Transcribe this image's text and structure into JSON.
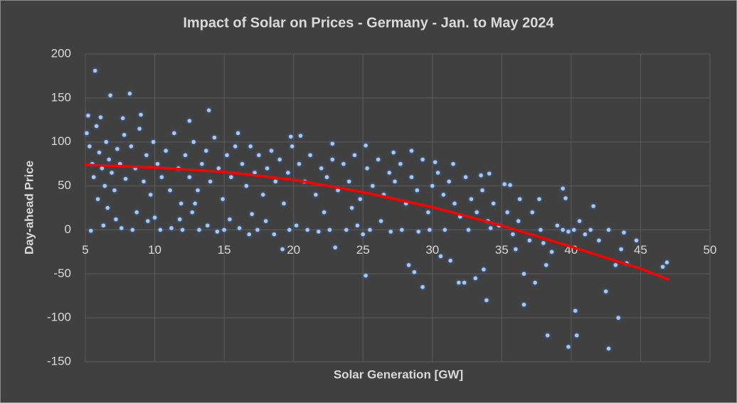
{
  "chart_data": {
    "type": "scatter",
    "title": "Impact of Solar on Prices - Germany - Jan. to May 2024",
    "x_label": "Solar Generation [GW]",
    "y_label": "Day-ahead Price",
    "xlim": [
      5,
      50
    ],
    "ylim": [
      -150,
      200
    ],
    "xticks": [
      5,
      10,
      15,
      20,
      25,
      30,
      35,
      40,
      45,
      50
    ],
    "yticks": [
      -150,
      -100,
      -50,
      0,
      50,
      100,
      150,
      200
    ],
    "grid": true,
    "series": [
      {
        "type": "scatter",
        "color": "#a7c7f2",
        "x": [
          5.7,
          6.8,
          8.2,
          13.9,
          25.2,
          29.3,
          33.9,
          36.6,
          38.3,
          39.8,
          40.3,
          40.4,
          42.5,
          42.7,
          43.4,
          46.6,
          46.9,
          44.7,
          43.8,
          42.7,
          41.6,
          39.4,
          39.6,
          37.7,
          36.3,
          35.2,
          35.6,
          33.5,
          34.1,
          30.2,
          31.5,
          28.5,
          27.2,
          25.2,
          22.8,
          19.8,
          20.5,
          16.0,
          12.5,
          9.0,
          5.2,
          6.1,
          7.7,
          5.1,
          5.3,
          5.5,
          5.6,
          5.8,
          6.0,
          6.2,
          6.4,
          6.5,
          6.7,
          6.9,
          7.1,
          7.3,
          7.5,
          7.8,
          7.9,
          5.4,
          6.3,
          7.2,
          7.6,
          8.4,
          5.9,
          6.6,
          8.3,
          8.6,
          8.9,
          9.2,
          9.4,
          9.7,
          9.9,
          10.2,
          10.5,
          10.8,
          11.1,
          11.4,
          11.7,
          11.9,
          8.7,
          9.5,
          10.0,
          10.4,
          11.2,
          11.8,
          12.0,
          12.2,
          12.5,
          12.8,
          13.1,
          13.4,
          13.7,
          14.0,
          14.3,
          14.6,
          14.9,
          15.2,
          15.5,
          15.8,
          12.7,
          13.2,
          13.8,
          14.5,
          15.0,
          15.4,
          16.1,
          12.9,
          16.3,
          16.6,
          16.9,
          17.2,
          17.5,
          17.8,
          18.1,
          18.4,
          18.7,
          19.0,
          19.3,
          19.6,
          19.9,
          16.8,
          17.4,
          18.0,
          18.6,
          19.2,
          19.7,
          20.2,
          17.0,
          20.4,
          20.8,
          21.2,
          21.6,
          22.0,
          22.4,
          22.8,
          23.2,
          23.6,
          24.0,
          24.4,
          24.8,
          21.0,
          21.8,
          22.6,
          23.0,
          23.8,
          24.6,
          25.0,
          22.2,
          24.2,
          25.3,
          25.7,
          26.1,
          26.5,
          26.9,
          27.3,
          27.7,
          28.1,
          28.5,
          28.9,
          29.3,
          29.7,
          25.5,
          26.3,
          27.0,
          27.8,
          28.3,
          28.7,
          29.0,
          29.8,
          30.0,
          30.4,
          30.8,
          31.2,
          31.6,
          32.0,
          32.4,
          32.8,
          33.2,
          33.6,
          34.0,
          34.4,
          30.6,
          31.3,
          31.9,
          32.3,
          33.1,
          33.7,
          30.9,
          32.6,
          34.2,
          34.8,
          35.4,
          35.8,
          36.2,
          36.6,
          37.0,
          37.4,
          37.8,
          38.2,
          38.6,
          39.0,
          39.4,
          39.8,
          40.2,
          40.6,
          41.0,
          41.4,
          42.0,
          43.2,
          43.6,
          44.0,
          36.0,
          37.2,
          38.0
        ],
        "values": [
          181,
          153,
          155,
          136,
          -52,
          -65,
          -80,
          -85,
          -120,
          -133,
          -92,
          -120,
          -70,
          -135,
          -100,
          -42,
          -37,
          -12,
          -3,
          0,
          27,
          47,
          36,
          35,
          35,
          52,
          51,
          62,
          64,
          77,
          75,
          90,
          88,
          96,
          98,
          106,
          107,
          110,
          124,
          131,
          130,
          128,
          127,
          110,
          95,
          75,
          60,
          118,
          88,
          70,
          50,
          100,
          80,
          65,
          45,
          92,
          75,
          108,
          58,
          -1,
          5,
          12,
          2,
          0,
          35,
          25,
          95,
          70,
          115,
          55,
          85,
          40,
          100,
          75,
          60,
          90,
          45,
          110,
          70,
          30,
          20,
          10,
          14,
          0,
          2,
          12,
          0,
          85,
          60,
          100,
          45,
          75,
          90,
          55,
          105,
          70,
          35,
          85,
          60,
          95,
          20,
          0,
          5,
          -2,
          0,
          12,
          2,
          30,
          75,
          50,
          95,
          65,
          85,
          40,
          70,
          90,
          55,
          80,
          30,
          65,
          95,
          -5,
          0,
          10,
          -5,
          -22,
          0,
          5,
          18,
          75,
          55,
          85,
          40,
          70,
          60,
          80,
          45,
          75,
          55,
          85,
          35,
          0,
          -2,
          0,
          -20,
          0,
          5,
          -5,
          20,
          25,
          70,
          50,
          80,
          40,
          65,
          55,
          75,
          30,
          60,
          45,
          80,
          20,
          0,
          10,
          -2,
          0,
          -40,
          -48,
          -2,
          0,
          50,
          65,
          40,
          55,
          30,
          15,
          60,
          35,
          20,
          45,
          10,
          30,
          -30,
          -35,
          -60,
          -60,
          -55,
          -45,
          0,
          0,
          2,
          5,
          20,
          -5,
          10,
          -50,
          -12,
          -60,
          0,
          -40,
          -25,
          5,
          0,
          -2,
          0,
          10,
          -5,
          0,
          -12,
          -40,
          -22,
          -38,
          -22,
          20,
          -15
        ]
      },
      {
        "type": "line",
        "color": "#ff0000",
        "x": [
          5,
          10,
          15,
          20,
          25,
          30,
          35,
          40,
          45,
          47
        ],
        "values": [
          74,
          71,
          66,
          57,
          43,
          26,
          5,
          -19,
          -44,
          -56
        ]
      }
    ]
  }
}
